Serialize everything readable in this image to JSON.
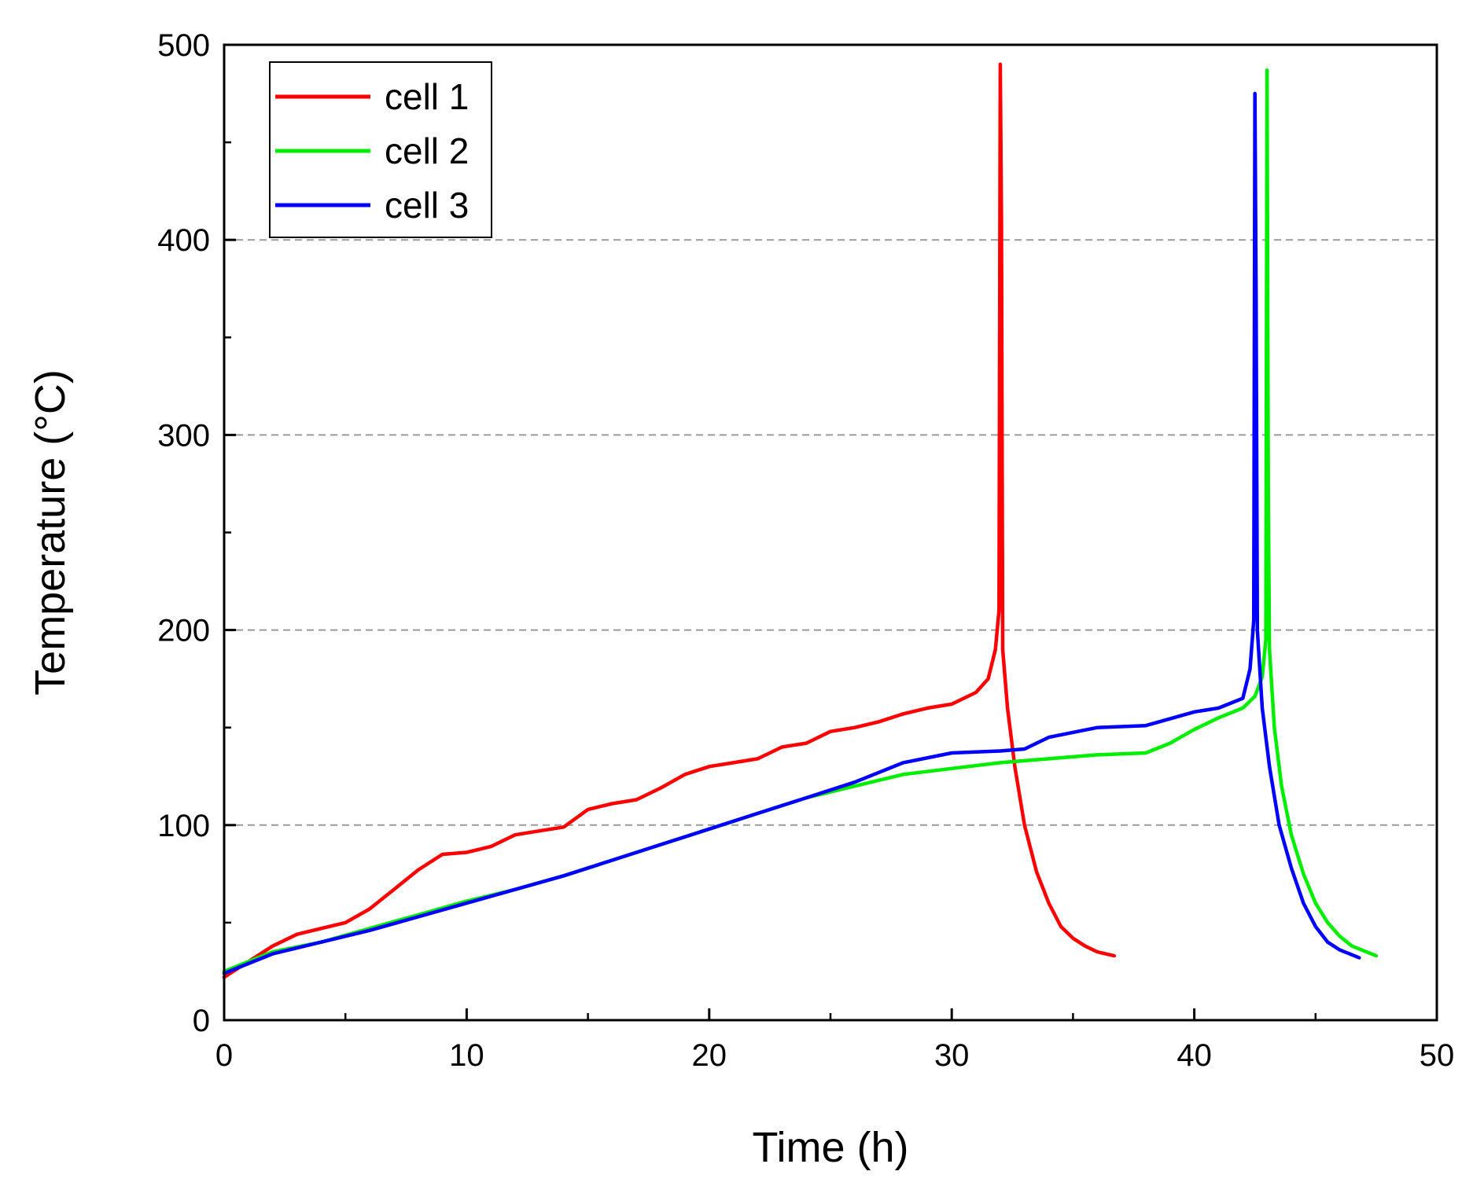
{
  "chart_data": {
    "type": "line",
    "title": "",
    "xlabel": "Time (h)",
    "ylabel": "Temperature (°C)",
    "xlim": [
      0,
      50
    ],
    "ylim": [
      0,
      500
    ],
    "xticks": [
      0,
      10,
      20,
      30,
      40,
      50
    ],
    "yticks": [
      0,
      100,
      200,
      300,
      400,
      500
    ],
    "grid": "horizontal dashed at 100, 200, 300, 400",
    "legend": "top-left",
    "series": [
      {
        "name": "cell 1",
        "color": "#ff0000",
        "x": [
          0,
          1,
          2,
          3,
          4,
          5,
          6,
          7,
          8,
          9,
          10,
          11,
          12,
          13,
          14,
          15,
          16,
          17,
          18,
          19,
          20,
          21,
          22,
          23,
          24,
          25,
          26,
          27,
          28,
          29,
          30,
          31,
          31.5,
          31.8,
          31.95,
          32.0,
          32.05,
          32.1,
          32.3,
          32.6,
          33,
          33.5,
          34,
          34.5,
          35,
          35.5,
          36,
          36.7
        ],
        "y": [
          22,
          30,
          38,
          44,
          47,
          50,
          57,
          67,
          77,
          85,
          86,
          89,
          95,
          97,
          99,
          108,
          111,
          113,
          119,
          126,
          130,
          132,
          134,
          140,
          142,
          148,
          150,
          153,
          157,
          160,
          162,
          168,
          175,
          190,
          210,
          490,
          410,
          190,
          160,
          130,
          100,
          76,
          60,
          48,
          42,
          38,
          35,
          33
        ]
      },
      {
        "name": "cell 2",
        "color": "#00ee00",
        "x": [
          0,
          1,
          2,
          4,
          6,
          8,
          10,
          12,
          14,
          16,
          18,
          20,
          22,
          24,
          26,
          28,
          30,
          32,
          34,
          36,
          38,
          39,
          40,
          41,
          42,
          42.5,
          42.8,
          42.95,
          43.0,
          43.05,
          43.1,
          43.3,
          43.6,
          44,
          44.5,
          45,
          45.5,
          46,
          46.5,
          47.5
        ],
        "y": [
          25,
          30,
          35,
          40,
          47,
          54,
          61,
          67,
          74,
          82,
          90,
          98,
          106,
          114,
          120,
          126,
          129,
          132,
          134,
          136,
          137,
          142,
          149,
          155,
          160,
          166,
          176,
          195,
          487,
          270,
          190,
          150,
          120,
          95,
          75,
          60,
          50,
          43,
          38,
          33
        ]
      },
      {
        "name": "cell 3",
        "color": "#0000ff",
        "x": [
          0,
          1,
          2,
          4,
          6,
          8,
          10,
          12,
          14,
          16,
          18,
          20,
          22,
          24,
          26,
          28,
          30,
          32,
          33,
          34,
          36,
          38,
          40,
          41,
          42,
          42.3,
          42.45,
          42.5,
          42.55,
          42.6,
          42.8,
          43.1,
          43.5,
          44,
          44.5,
          45,
          45.5,
          46,
          46.8
        ],
        "y": [
          24,
          29,
          34,
          40,
          46,
          53,
          60,
          67,
          74,
          82,
          90,
          98,
          106,
          114,
          122,
          132,
          137,
          138,
          139,
          145,
          150,
          151,
          158,
          160,
          165,
          180,
          205,
          475,
          370,
          200,
          160,
          130,
          100,
          78,
          60,
          48,
          40,
          36,
          32
        ]
      }
    ]
  }
}
